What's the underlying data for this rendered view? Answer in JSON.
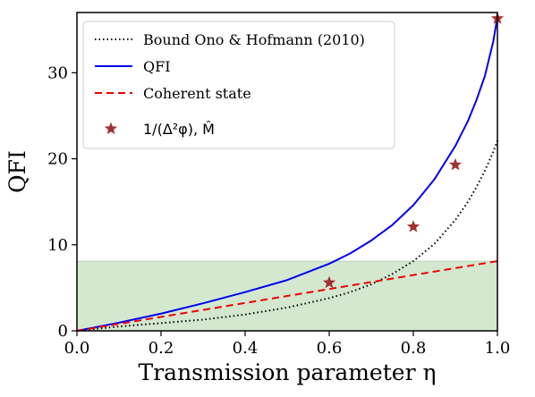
{
  "chart_data": {
    "type": "line",
    "title": "",
    "xlabel": "Transmission parameter η",
    "ylabel": "QFI",
    "xlim": [
      0,
      1
    ],
    "ylim": [
      0,
      37
    ],
    "xticks": [
      "0.0",
      "0.2",
      "0.4",
      "0.6",
      "0.8",
      "1.0"
    ],
    "yticks": [
      "0",
      "10",
      "20",
      "30"
    ],
    "grid": false,
    "legend_position": "top-left",
    "shaded_region": {
      "y_from": 0,
      "y_to": 8.1,
      "color": "#d4e8d0"
    },
    "series": [
      {
        "name": "Bound Ono & Hofmann (2010)",
        "style": "dotted",
        "color": "#000000",
        "x": [
          0,
          0.1,
          0.2,
          0.3,
          0.4,
          0.5,
          0.6,
          0.65,
          0.7,
          0.75,
          0.8,
          0.85,
          0.9,
          0.93,
          0.95,
          0.97,
          0.99,
          1.0
        ],
        "y": [
          0,
          0.5,
          0.9,
          1.3,
          1.9,
          2.7,
          3.8,
          4.5,
          5.4,
          6.6,
          8.1,
          10.1,
          12.9,
          15.0,
          16.7,
          18.6,
          20.8,
          22.1
        ]
      },
      {
        "name": "QFI",
        "style": "solid",
        "color": "#0000ee",
        "x": [
          0,
          0.1,
          0.2,
          0.3,
          0.4,
          0.5,
          0.6,
          0.65,
          0.7,
          0.75,
          0.8,
          0.85,
          0.9,
          0.93,
          0.95,
          0.97,
          0.99,
          1.0
        ],
        "y": [
          0,
          0.95,
          2.0,
          3.2,
          4.5,
          5.9,
          7.8,
          9.0,
          10.5,
          12.3,
          14.6,
          17.6,
          21.5,
          24.4,
          26.8,
          29.6,
          33.6,
          36.5
        ]
      },
      {
        "name": "Coherent state",
        "style": "dashed",
        "color": "#ee0000",
        "x": [
          0,
          1.0
        ],
        "y": [
          0,
          8.1
        ]
      },
      {
        "name": "1/(Δ²φ), M̂",
        "style": "markers",
        "marker": "star",
        "color": "#a03030",
        "x": [
          0.6,
          0.8,
          0.9,
          1.0
        ],
        "y": [
          5.6,
          12.1,
          19.3,
          36.3
        ]
      }
    ]
  }
}
